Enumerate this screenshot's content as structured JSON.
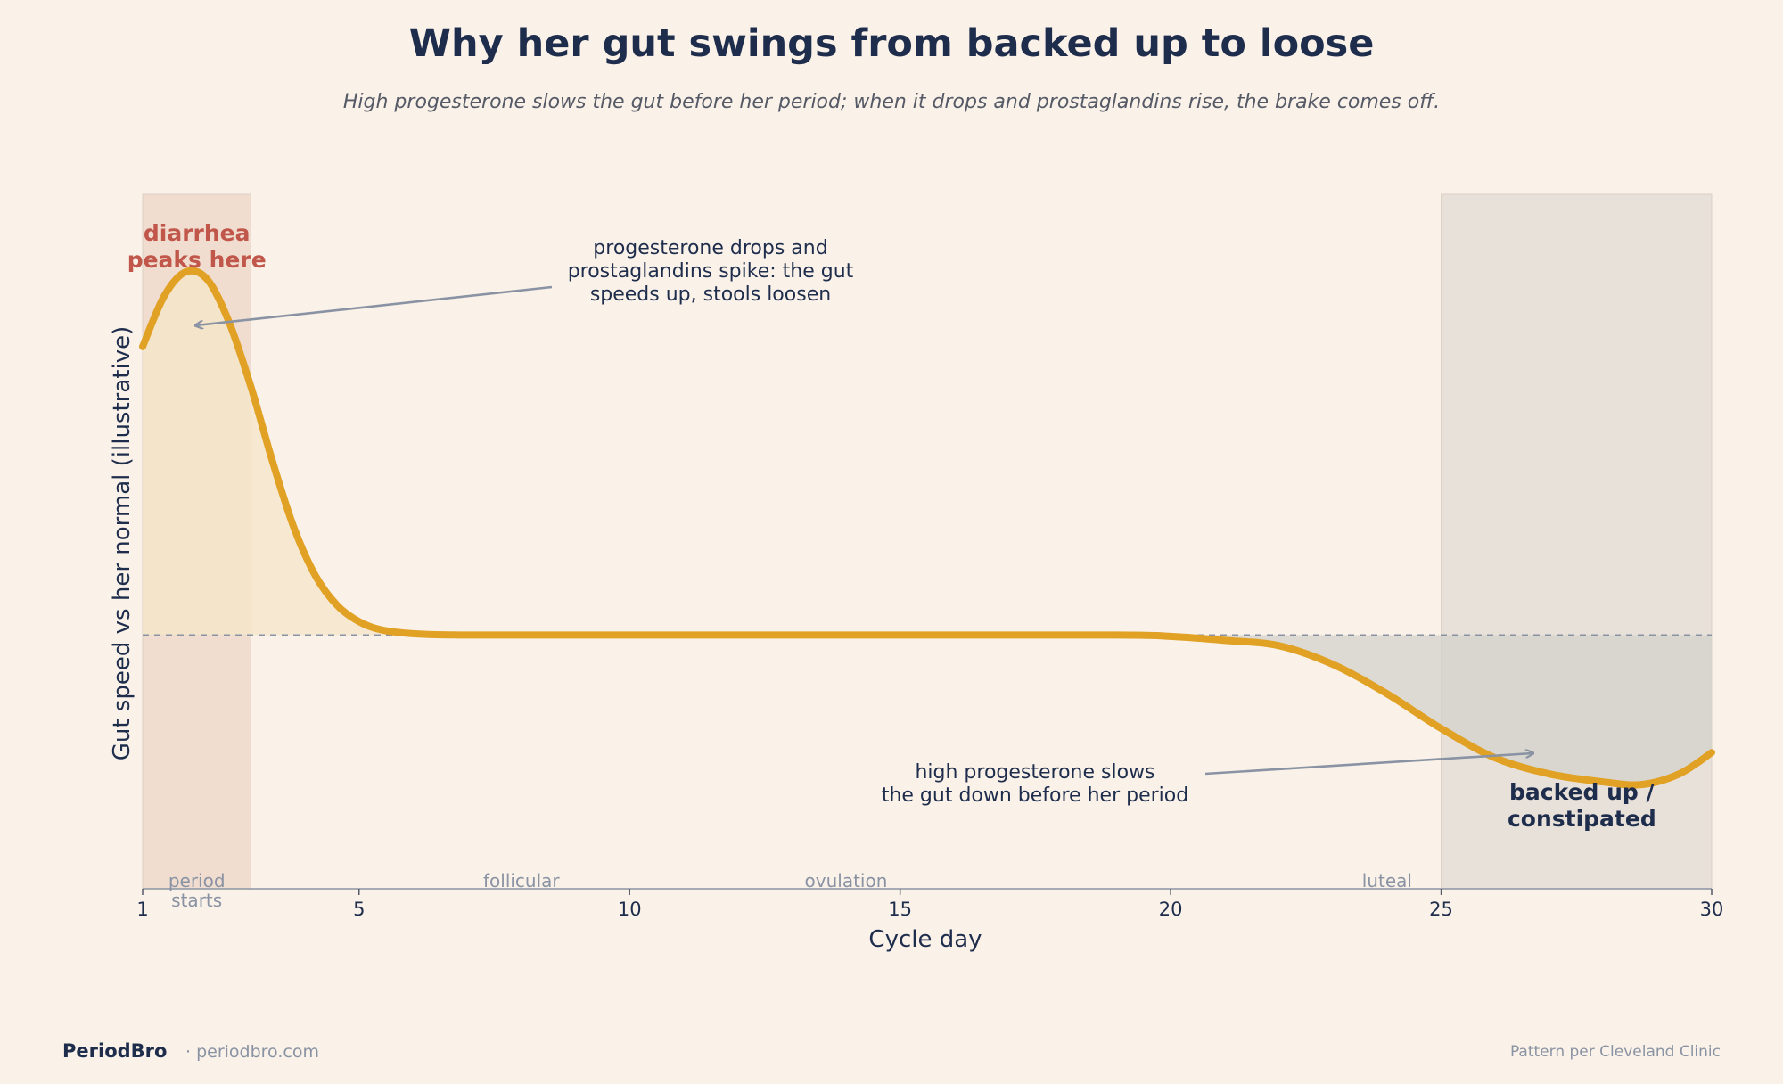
{
  "title": "Why her gut swings from backed up to loose",
  "subtitle": "High progesterone slows the gut before her period; when it drops and prostaglandins rise, the brake comes off.",
  "colors": {
    "background": "#faf2e9",
    "curve": "#e0a125",
    "title": "#1f2d4d",
    "diarrhea_label": "#c0574a",
    "period_band": "#f0dccf",
    "luteal_band": "#e8e1d9",
    "fill_above": "#f5e6c8",
    "fill_below": "#d3d1cb",
    "muted": "#8a93a3"
  },
  "chart_data": {
    "type": "line",
    "xlabel": "Cycle day",
    "ylabel": "Gut speed vs her normal (illustrative)",
    "xlim": [
      1,
      30
    ],
    "ylim": [
      -0.95,
      1.65
    ],
    "x_ticks": [
      "1",
      "5",
      "10",
      "15",
      "20",
      "25",
      "30"
    ],
    "baseline": 0,
    "grid": false,
    "series": [
      {
        "x": [
          1,
          1.4,
          1.8,
          2.2,
          2.6,
          3.0,
          3.4,
          3.8,
          4.2,
          4.6,
          5.0,
          5.4,
          6,
          7,
          10,
          15,
          19,
          20,
          21,
          22,
          23,
          24,
          25,
          26,
          27,
          28,
          28.7,
          29.4,
          30
        ],
        "y": [
          1.08,
          1.27,
          1.36,
          1.33,
          1.17,
          0.93,
          0.65,
          0.4,
          0.22,
          0.11,
          0.05,
          0.02,
          0.005,
          0.0,
          0.0,
          0.0,
          0.0,
          -0.005,
          -0.02,
          -0.04,
          -0.11,
          -0.22,
          -0.35,
          -0.46,
          -0.52,
          -0.55,
          -0.56,
          -0.52,
          -0.44
        ]
      }
    ],
    "shaded_regions": [
      {
        "from": 1,
        "to": 3
      },
      {
        "from": 25,
        "to": 30
      }
    ],
    "phase_labels": [
      {
        "day": 2,
        "text": "period\nstarts"
      },
      {
        "day": 8,
        "text": "follicular"
      },
      {
        "day": 14,
        "text": "ovulation"
      },
      {
        "day": 24,
        "text": "luteal"
      }
    ],
    "annotations": {
      "peak_label": "diarrhea\npeaks here",
      "trough_label": "backed up /\nconstipated",
      "drop_note": "progesterone drops and\nprostaglandins spike: the gut\nspeeds up, stools loosen",
      "slow_note": "high progesterone slows\nthe gut down before her period"
    }
  },
  "footer": {
    "brand": "PeriodBro",
    "site": "· periodbro.com",
    "source": "Pattern per Cleveland Clinic"
  }
}
